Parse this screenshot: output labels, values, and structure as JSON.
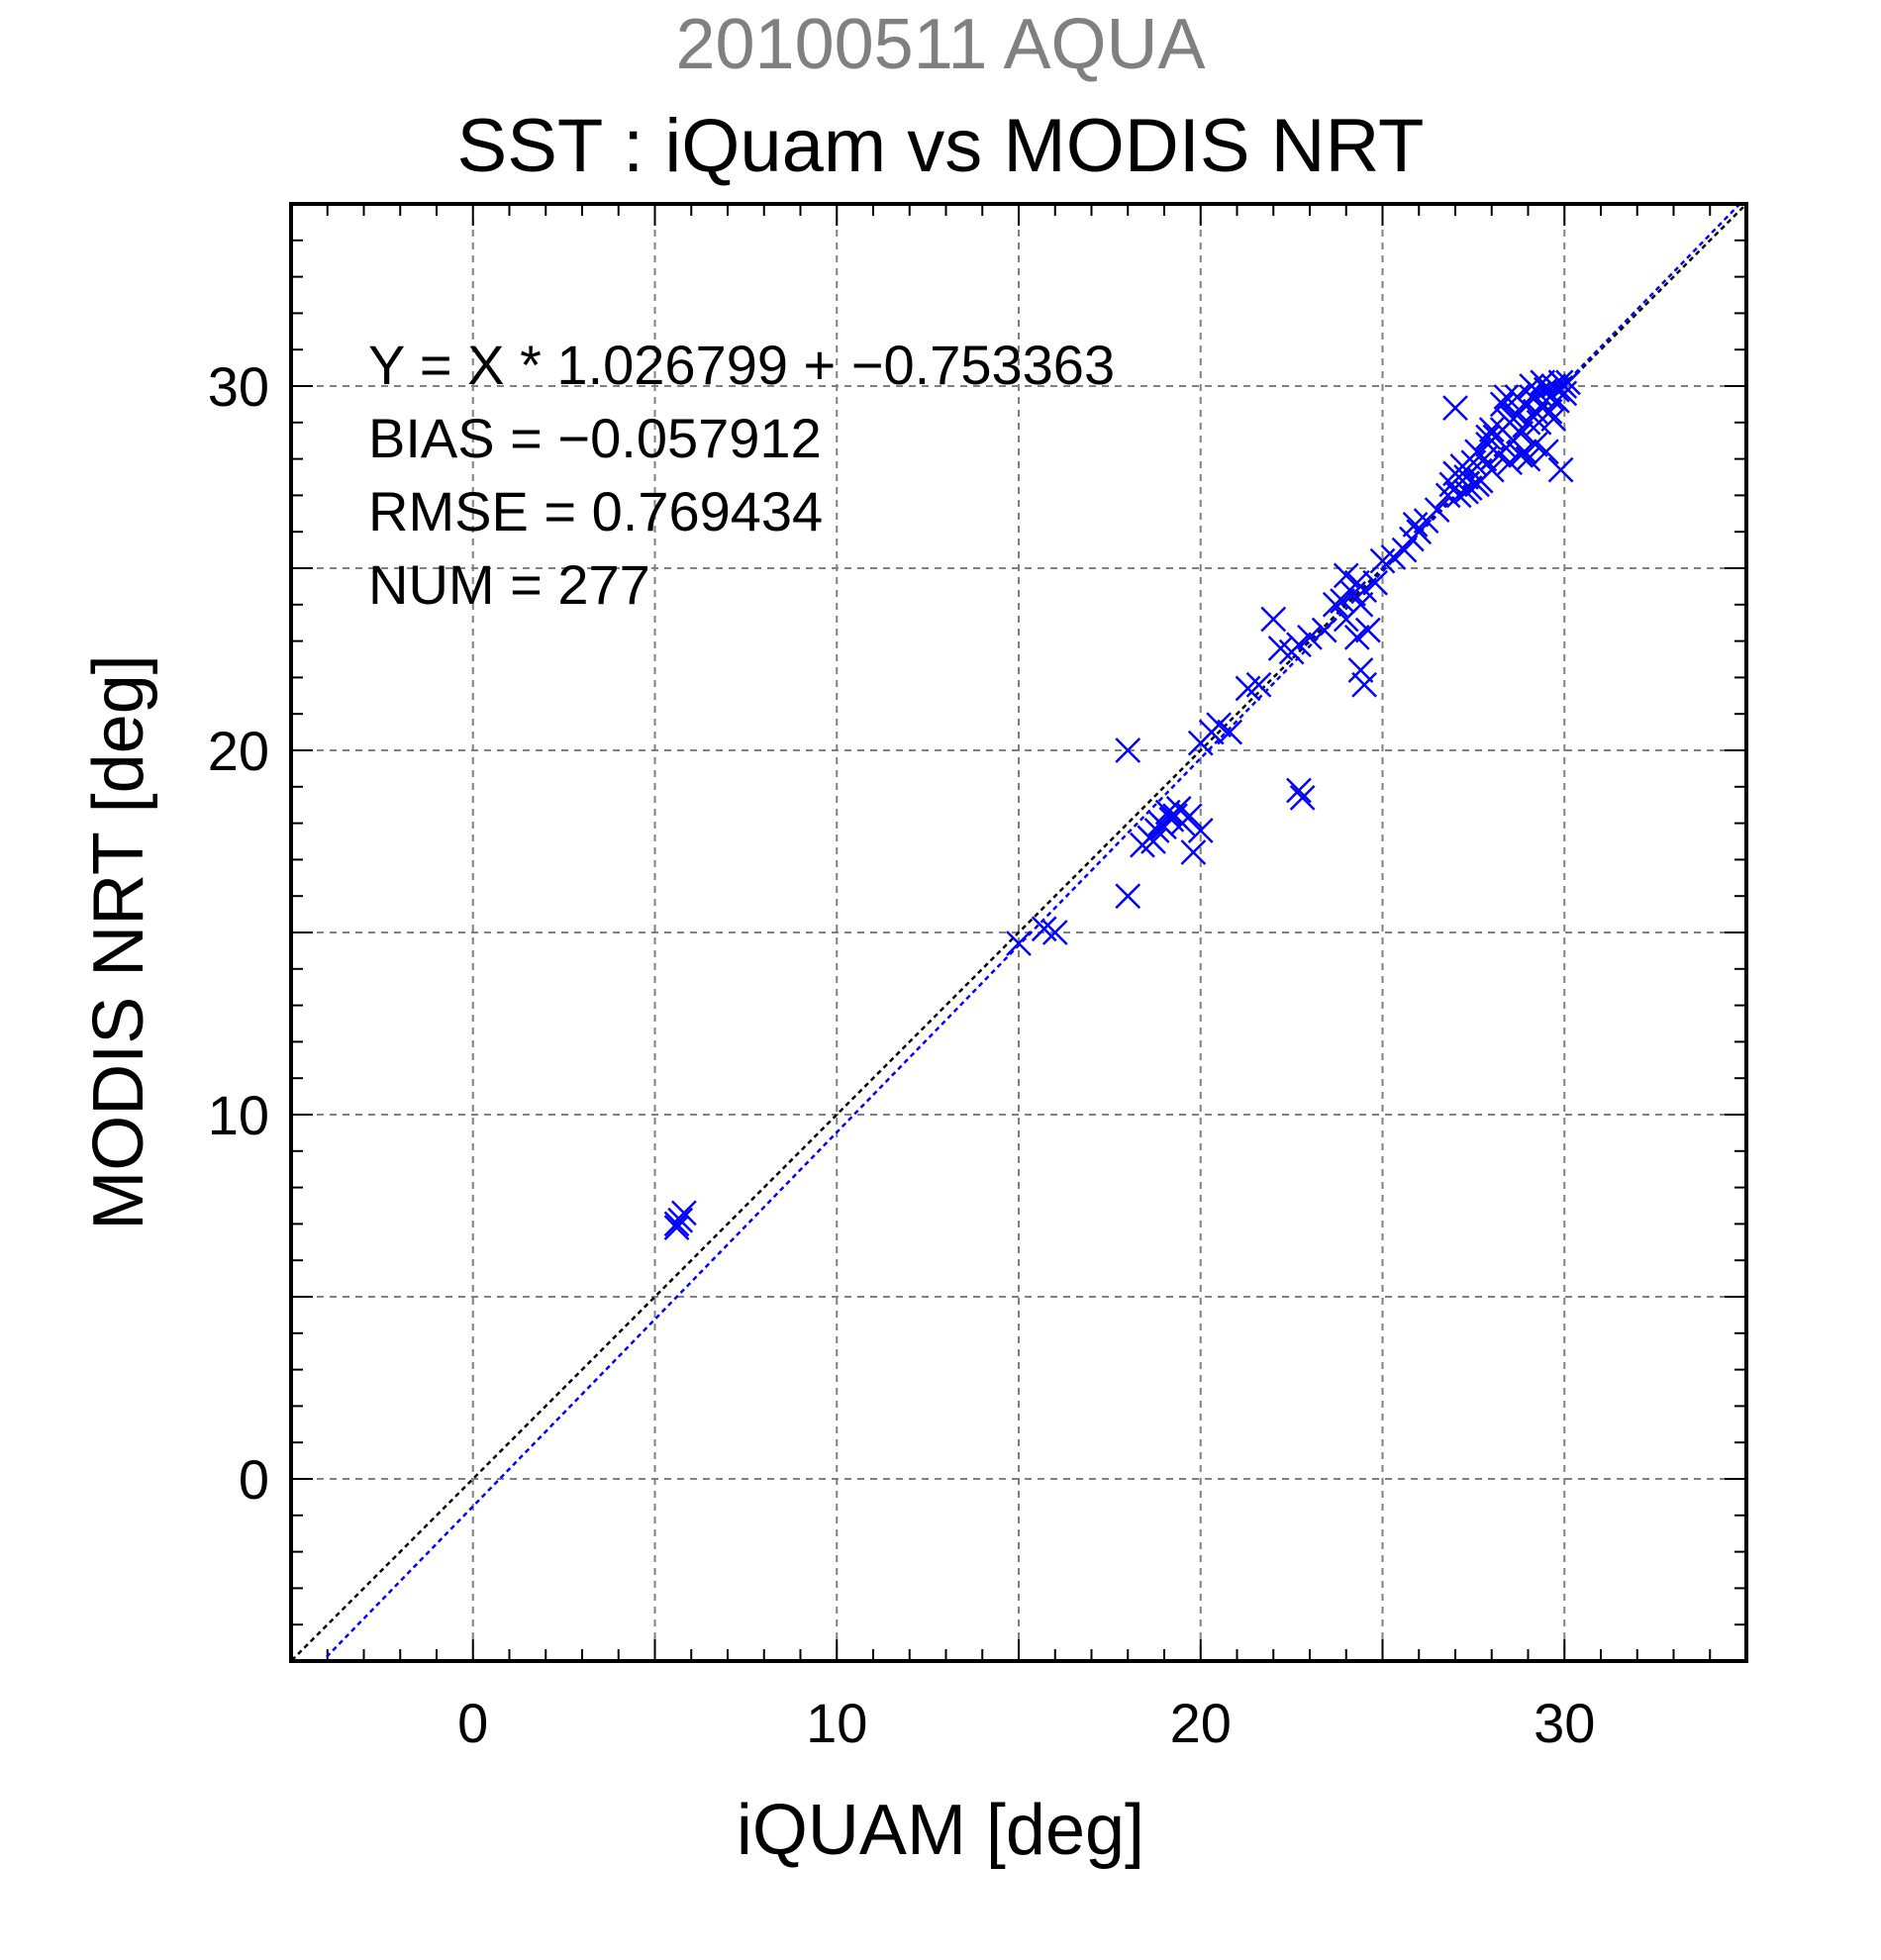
{
  "chart_data": {
    "type": "scatter",
    "supertitle": "20100511 AQUA",
    "title": "SST : iQuam vs MODIS NRT",
    "xlabel": "iQUAM [deg]",
    "ylabel": "MODIS NRT [deg]",
    "xlim": [
      -5,
      35
    ],
    "ylim": [
      -5,
      35
    ],
    "xticks": [
      0,
      10,
      20,
      30
    ],
    "yticks": [
      0,
      10,
      20,
      30
    ],
    "grid": true,
    "marker": "x",
    "colors": {
      "points": "#0000ff",
      "fit_line": "#0000ff",
      "identity_line": "#000000",
      "grid": "#808080"
    },
    "stats": {
      "equation": "Y = X * 1.026799 + −0.753363",
      "bias": "BIAS = −0.057912",
      "rmse": "RMSE = 0.769434",
      "num": "NUM = 277"
    },
    "lines": [
      {
        "type": "identity",
        "slope": 1.0,
        "intercept": 0.0
      },
      {
        "type": "fit",
        "slope": 1.026799,
        "intercept": -0.753363
      }
    ],
    "points": [
      [
        5.6,
        7.0
      ],
      [
        5.7,
        7.1
      ],
      [
        5.8,
        7.3
      ],
      [
        5.6,
        6.9
      ],
      [
        15.0,
        14.7
      ],
      [
        15.7,
        15.1
      ],
      [
        16.0,
        15.0
      ],
      [
        18.0,
        20.0
      ],
      [
        18.0,
        16.0
      ],
      [
        18.4,
        17.4
      ],
      [
        18.6,
        17.6
      ],
      [
        18.8,
        17.8
      ],
      [
        18.9,
        18.0
      ],
      [
        19.1,
        18.3
      ],
      [
        19.3,
        18.2
      ],
      [
        19.5,
        18.0
      ],
      [
        19.7,
        18.2
      ],
      [
        19.4,
        18.4
      ],
      [
        18.7,
        17.5
      ],
      [
        19.0,
        17.9
      ],
      [
        19.2,
        18.1
      ],
      [
        19.8,
        17.2
      ],
      [
        20.0,
        17.8
      ],
      [
        20.0,
        20.2
      ],
      [
        20.3,
        20.5
      ],
      [
        20.5,
        20.7
      ],
      [
        20.8,
        20.5
      ],
      [
        21.3,
        21.7
      ],
      [
        21.6,
        21.8
      ],
      [
        22.0,
        23.6
      ],
      [
        22.2,
        22.8
      ],
      [
        22.5,
        22.7
      ],
      [
        22.7,
        22.9
      ],
      [
        22.7,
        18.9
      ],
      [
        22.8,
        18.7
      ],
      [
        23.0,
        23.1
      ],
      [
        23.4,
        23.3
      ],
      [
        23.7,
        24.0
      ],
      [
        23.9,
        24.1
      ],
      [
        24.0,
        23.6
      ],
      [
        24.2,
        24.3
      ],
      [
        24.3,
        24.6
      ],
      [
        24.4,
        24.0
      ],
      [
        24.5,
        24.4
      ],
      [
        24.3,
        23.1
      ],
      [
        24.4,
        22.2
      ],
      [
        24.5,
        21.8
      ],
      [
        24.0,
        24.8
      ],
      [
        24.6,
        23.3
      ],
      [
        24.8,
        24.6
      ],
      [
        25.0,
        25.2
      ],
      [
        25.3,
        25.3
      ],
      [
        25.6,
        25.5
      ],
      [
        25.8,
        25.8
      ],
      [
        25.9,
        26.2
      ],
      [
        26.0,
        26.0
      ],
      [
        26.2,
        26.3
      ],
      [
        26.5,
        26.6
      ],
      [
        26.8,
        27.0
      ],
      [
        26.9,
        27.3
      ],
      [
        27.0,
        27.6
      ],
      [
        27.1,
        27.0
      ],
      [
        27.2,
        27.8
      ],
      [
        27.3,
        27.5
      ],
      [
        27.0,
        29.4
      ],
      [
        27.4,
        27.2
      ],
      [
        27.5,
        27.9
      ],
      [
        27.6,
        28.2
      ],
      [
        27.7,
        27.4
      ],
      [
        27.8,
        28.0
      ],
      [
        27.9,
        28.4
      ],
      [
        28.0,
        27.7
      ],
      [
        28.1,
        28.6
      ],
      [
        28.2,
        28.1
      ],
      [
        28.3,
        28.8
      ],
      [
        28.4,
        28.3
      ],
      [
        28.5,
        29.0
      ],
      [
        28.6,
        28.5
      ],
      [
        28.7,
        29.2
      ],
      [
        28.8,
        28.7
      ],
      [
        28.9,
        29.5
      ],
      [
        29.0,
        29.0
      ],
      [
        29.1,
        29.7
      ],
      [
        29.2,
        29.3
      ],
      [
        29.3,
        29.8
      ],
      [
        29.4,
        29.5
      ],
      [
        29.5,
        29.9
      ],
      [
        29.6,
        29.7
      ],
      [
        29.7,
        30.0
      ],
      [
        29.8,
        29.9
      ],
      [
        29.9,
        30.1
      ],
      [
        30.0,
        30.0
      ],
      [
        30.1,
        30.1
      ],
      [
        29.0,
        28.0
      ],
      [
        29.2,
        28.4
      ],
      [
        29.5,
        28.2
      ],
      [
        29.9,
        27.7
      ],
      [
        28.5,
        27.9
      ],
      [
        28.0,
        28.8
      ],
      [
        28.3,
        29.5
      ],
      [
        28.7,
        29.7
      ],
      [
        29.1,
        30.0
      ],
      [
        29.4,
        30.1
      ],
      [
        28.9,
        28.2
      ],
      [
        29.3,
        29.0
      ],
      [
        29.6,
        29.3
      ],
      [
        29.8,
        29.6
      ],
      [
        28.6,
        29.1
      ],
      [
        28.4,
        29.7
      ],
      [
        27.9,
        28.6
      ],
      [
        27.6,
        27.3
      ],
      [
        27.3,
        27.1
      ],
      [
        28.8,
        28.1
      ],
      [
        29.7,
        29.1
      ],
      [
        30.0,
        29.8
      ]
    ]
  }
}
